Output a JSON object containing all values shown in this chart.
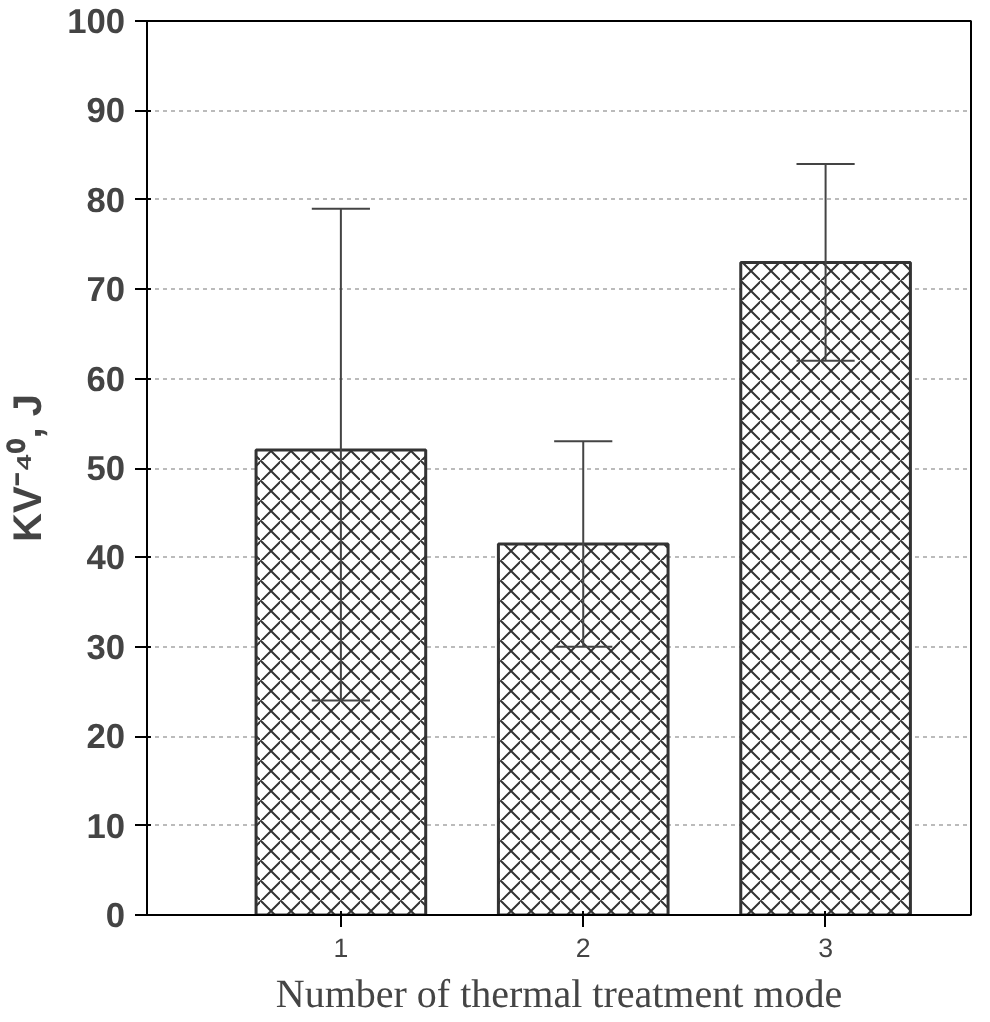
{
  "chart_data": {
    "type": "bar",
    "xlabel": "Number of thermal treatment mode",
    "ylabel": "KV⁻⁴⁰, J",
    "categories": [
      "1",
      "2",
      "3"
    ],
    "values": [
      52,
      41.5,
      73
    ],
    "color": "#ffffff",
    "errors": [
      [
        24,
        79
      ],
      [
        30,
        53
      ],
      [
        62,
        84
      ]
    ],
    "ylim": [
      0,
      100
    ],
    "yticks": [
      0,
      10,
      20,
      30,
      40,
      50,
      60,
      70,
      80,
      90,
      100
    ],
    "grid": "y"
  }
}
